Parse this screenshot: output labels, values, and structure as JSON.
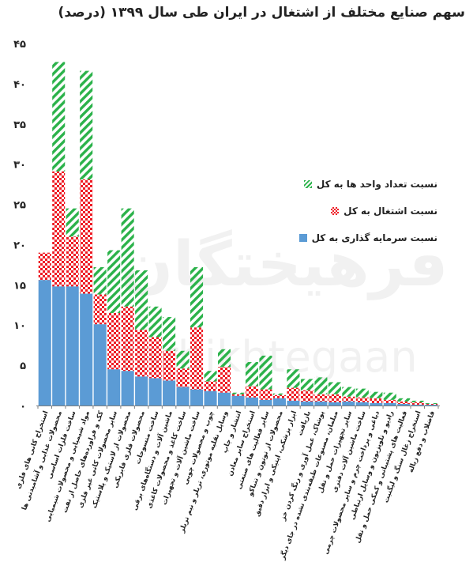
{
  "title": "سهم صنایع مختلف از اشتغال در ایران طی سال ۱۳۹۹ (درصد)",
  "watermark": {
    "text": "فرهیختگان",
    "latin": "farhikhtegaan"
  },
  "colors": {
    "investment": "#5b9bd5",
    "employment": "#ee1c25",
    "units": "#2bb24a"
  },
  "chart_data": {
    "type": "bar",
    "stacked": true,
    "title": "سهم صنایع مختلف از اشتغال در ایران طی سال ۱۳۹۹ (درصد)",
    "xlabel": "",
    "ylabel": "",
    "ylim": [
      0,
      45
    ],
    "yticks": [
      0,
      5,
      10,
      15,
      20,
      25,
      30,
      35,
      40,
      45
    ],
    "ytick_labels": [
      "۰",
      "۵",
      "۱۰",
      "۱۵",
      "۲۰",
      "۲۵",
      "۳۰",
      "۳۵",
      "۴۰",
      "۴۵"
    ],
    "grid": false,
    "legend_position": "right",
    "categories": [
      "استخراج کانی های فلزی",
      "محصولات غذایی و آشامیدنی ها",
      "ساخت فلزات اساسی",
      "مواد شیمیایی و محصولات شیمیایی",
      "کک و فراورده‌های حاصل از نفت",
      "سایر محصولات کانی غیر فلزی",
      "محصولات از لاستیک و پلاستیک",
      "محصولات فلزی فابریکی",
      "ساخت منسوجات",
      "ماشین آلات و دستگاه‌های برقی",
      "ساخت کاغذ و محصولات کاغذی",
      "ساخت ماشین آلات و تجهیزات",
      "چوب و محصولات چوبی",
      "وسایل نقلیه موتوری، تریلر و نیم تریلر",
      "انتشار و چاپ",
      "استخراج سایر معادن",
      "سایر فعالیت های صنعتی",
      "محصولات از توتون و تنباکو",
      "ابزار پزشکی، اپتیکی و ابزار دقیق",
      "بازیافت",
      "پوشاک، عمل آوری و رنگ کردن خز",
      "مبلمان، مصنوعات طبقه‌بندی نشده در جای دیگر",
      "سایر تجهیزات حمل و نقل",
      "ساخت ماشین آلات دفتری",
      "دباغی و پرداخت چرم و سایر محصولات چرمی",
      "رادیو و تلویزیون و وسایل ارتباطی",
      "فعالیت های پشتیبانی و کمکی حمل و نقل",
      "استخراج زغال سنگ و لیگنیت",
      "فاضلاب و دفع زباله"
    ],
    "series": [
      {
        "name": "نسبت سرمایه گذاری به کل",
        "pattern": "solid",
        "color": "#5b9bd5",
        "values": [
          15.6,
          14.8,
          14.8,
          13.9,
          10.1,
          4.5,
          4.3,
          3.6,
          3.4,
          3.1,
          2.3,
          2.0,
          1.8,
          1.6,
          1.2,
          1.0,
          0.7,
          0.9,
          0.6,
          0.5,
          0.5,
          0.4,
          0.5,
          0.4,
          0.3,
          0.3,
          0.2,
          0.1,
          0.1
        ]
      },
      {
        "name": "نسبت اشتغال به کل",
        "pattern": "checker",
        "color": "#ee1c25",
        "values": [
          3.4,
          14.3,
          6.2,
          14.2,
          3.7,
          7.0,
          8.0,
          5.8,
          5.1,
          3.7,
          2.3,
          7.7,
          1.2,
          3.2,
          0.2,
          1.4,
          1.3,
          0.4,
          1.6,
          1.4,
          0.9,
          1.0,
          0.6,
          0.6,
          0.6,
          0.4,
          0.3,
          0.3,
          0.1
        ]
      },
      {
        "name": "نسبت تعداد واحد ها به کل",
        "pattern": "diagonal",
        "color": "#2bb24a",
        "values": [
          0.0,
          13.6,
          3.5,
          13.5,
          3.4,
          7.8,
          12.2,
          7.4,
          3.8,
          4.2,
          2.2,
          7.5,
          1.3,
          2.2,
          0.2,
          3.0,
          4.2,
          0.2,
          2.3,
          1.4,
          2.1,
          1.5,
          1.2,
          1.1,
          0.8,
          0.9,
          0.4,
          0.2,
          0.1
        ]
      }
    ]
  }
}
